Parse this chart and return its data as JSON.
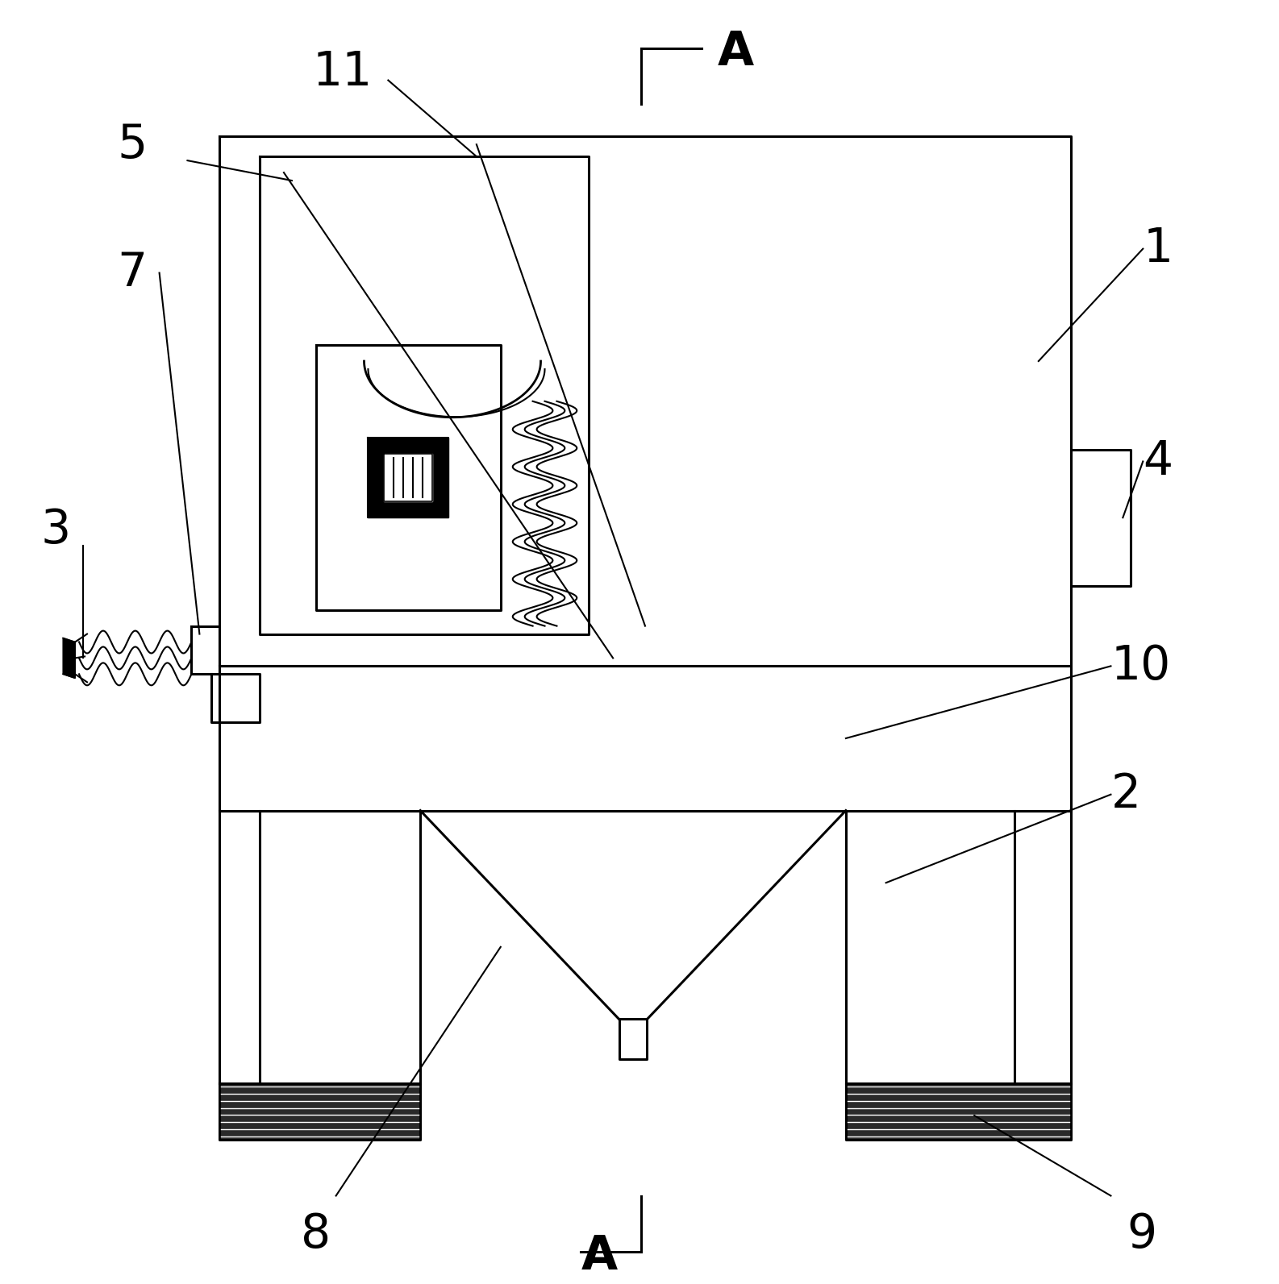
{
  "bg_color": "#ffffff",
  "line_color": "#000000",
  "lw": 2.2,
  "thin_lw": 1.5,
  "fig_width": 15.86,
  "fig_height": 15.93
}
